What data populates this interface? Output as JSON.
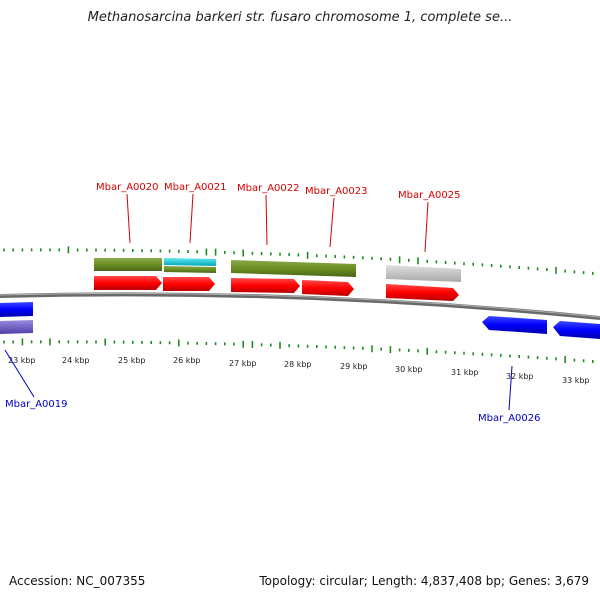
{
  "title": "Methanosarcina barkeri str. fusaro chromosome 1, complete se...",
  "footer": {
    "accession": "Accession: NC_007355",
    "summary": "Topology: circular; Length: 4,837,408 bp; Genes: 3,679"
  },
  "colors": {
    "cds_forward": "#ff0000",
    "cds_reverse": "#0000ff",
    "cog_green": "#6b8e23",
    "cog_cyan": "#00c8d8",
    "cog_grey": "#c0c0c0",
    "cog_purple": "#7060c8",
    "backbone": "#808080",
    "gc_ticks": "#228b22",
    "label_forward": "#d40000",
    "label_reverse": "#0000c0"
  },
  "scale_ticks": [
    "23 kbp",
    "24 kbp",
    "25 kbp",
    "26 kbp",
    "27 kbp",
    "28 kbp",
    "29 kbp",
    "30 kbp",
    "31 kbp",
    "32 kbp",
    "33 kbp"
  ],
  "genes_forward": [
    "Mbar_A0020",
    "Mbar_A0021",
    "Mbar_A0022",
    "Mbar_A0023",
    "Mbar_A0025"
  ],
  "genes_reverse": [
    "Mbar_A0019",
    "Mbar_A0026"
  ]
}
